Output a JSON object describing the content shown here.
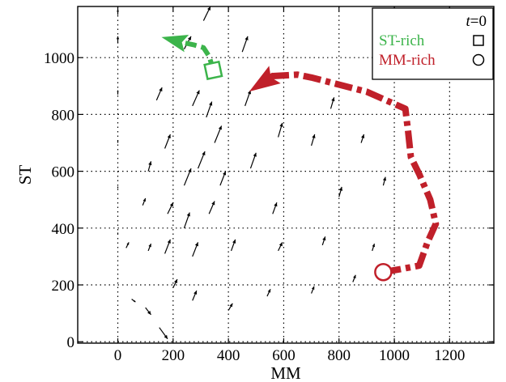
{
  "chart_data": {
    "type": "line",
    "title": "",
    "xlabel": "MM",
    "ylabel": "ST",
    "xlim": [
      -145,
      1360
    ],
    "ylim": [
      -5,
      1180
    ],
    "xticks": [
      0,
      200,
      400,
      600,
      800,
      1000,
      1200
    ],
    "yticks": [
      0,
      200,
      400,
      600,
      800,
      1000
    ],
    "grid": true,
    "legend": {
      "position": "top-right",
      "header": "t=0",
      "header_var": "t",
      "header_value": "=0",
      "entries": [
        {
          "label": "ST-rich",
          "color": "#3cb44b",
          "marker": "square"
        },
        {
          "label": "MM-rich",
          "color": "#c0202a",
          "marker": "circle"
        }
      ]
    },
    "series": [
      {
        "name": "ST-rich",
        "color": "#3cb44b",
        "start_marker": "square",
        "x": [
          345,
          338,
          330,
          310,
          275,
          240,
          175
        ],
        "y": [
          955,
          980,
          1005,
          1035,
          1045,
          1052,
          1068
        ]
      },
      {
        "name": "MM-rich",
        "color": "#c0202a",
        "start_marker": "circle",
        "x": [
          960,
          1020,
          1090,
          1120,
          1150,
          1130,
          1090,
          1060,
          1050,
          1040,
          900,
          780,
          700,
          650,
          560,
          490
        ],
        "y": [
          245,
          255,
          268,
          350,
          415,
          500,
          590,
          650,
          740,
          820,
          880,
          910,
          930,
          940,
          935,
          890
        ]
      }
    ],
    "vector_field": [
      {
        "x": 0,
        "y": 1050,
        "dx": 0,
        "dy": 25
      },
      {
        "x": 0,
        "y": 870,
        "dx": 0,
        "dy": 15
      },
      {
        "x": 0,
        "y": 700,
        "dx": 0,
        "dy": 10
      },
      {
        "x": 0,
        "y": 540,
        "dx": 0,
        "dy": 6
      },
      {
        "x": 0,
        "y": 380,
        "dx": 0,
        "dy": 4
      },
      {
        "x": 0,
        "y": 220,
        "dx": 0,
        "dy": 3
      },
      {
        "x": 0,
        "y": 1150,
        "dx": 0,
        "dy": 20
      },
      {
        "x": 30,
        "y": 330,
        "dx": 10,
        "dy": 20
      },
      {
        "x": 50,
        "y": 150,
        "dx": 14,
        "dy": -10
      },
      {
        "x": 90,
        "y": 480,
        "dx": 10,
        "dy": 25
      },
      {
        "x": 100,
        "y": 120,
        "dx": 20,
        "dy": -25
      },
      {
        "x": 110,
        "y": 320,
        "dx": 10,
        "dy": 25
      },
      {
        "x": 110,
        "y": 600,
        "dx": 10,
        "dy": 35
      },
      {
        "x": 140,
        "y": 850,
        "dx": 20,
        "dy": 45
      },
      {
        "x": 150,
        "y": 50,
        "dx": 30,
        "dy": -40
      },
      {
        "x": 170,
        "y": 680,
        "dx": 20,
        "dy": 50
      },
      {
        "x": 170,
        "y": 310,
        "dx": 20,
        "dy": 50
      },
      {
        "x": 180,
        "y": 450,
        "dx": 20,
        "dy": 40
      },
      {
        "x": 200,
        "y": 190,
        "dx": 15,
        "dy": 30
      },
      {
        "x": 240,
        "y": 1030,
        "dx": 25,
        "dy": 45
      },
      {
        "x": 240,
        "y": 550,
        "dx": 25,
        "dy": 60
      },
      {
        "x": 240,
        "y": 400,
        "dx": 20,
        "dy": 55
      },
      {
        "x": 270,
        "y": 830,
        "dx": 25,
        "dy": 55
      },
      {
        "x": 270,
        "y": 300,
        "dx": 20,
        "dy": 50
      },
      {
        "x": 270,
        "y": 145,
        "dx": 15,
        "dy": 35
      },
      {
        "x": 290,
        "y": 610,
        "dx": 25,
        "dy": 60
      },
      {
        "x": 310,
        "y": 1130,
        "dx": 25,
        "dy": 50
      },
      {
        "x": 320,
        "y": 790,
        "dx": 20,
        "dy": 55
      },
      {
        "x": 330,
        "y": 450,
        "dx": 20,
        "dy": 45
      },
      {
        "x": 350,
        "y": 700,
        "dx": 25,
        "dy": 60
      },
      {
        "x": 370,
        "y": 550,
        "dx": 20,
        "dy": 50
      },
      {
        "x": 400,
        "y": 110,
        "dx": 15,
        "dy": 25
      },
      {
        "x": 410,
        "y": 320,
        "dx": 15,
        "dy": 40
      },
      {
        "x": 450,
        "y": 1020,
        "dx": 20,
        "dy": 55
      },
      {
        "x": 460,
        "y": 830,
        "dx": 20,
        "dy": 55
      },
      {
        "x": 480,
        "y": 610,
        "dx": 20,
        "dy": 55
      },
      {
        "x": 540,
        "y": 160,
        "dx": 12,
        "dy": 25
      },
      {
        "x": 560,
        "y": 450,
        "dx": 15,
        "dy": 40
      },
      {
        "x": 580,
        "y": 720,
        "dx": 15,
        "dy": 50
      },
      {
        "x": 580,
        "y": 320,
        "dx": 15,
        "dy": 30
      },
      {
        "x": 700,
        "y": 170,
        "dx": 10,
        "dy": 25
      },
      {
        "x": 700,
        "y": 690,
        "dx": 12,
        "dy": 40
      },
      {
        "x": 740,
        "y": 340,
        "dx": 10,
        "dy": 30
      },
      {
        "x": 770,
        "y": 820,
        "dx": 12,
        "dy": 40
      },
      {
        "x": 800,
        "y": 510,
        "dx": 10,
        "dy": 35
      },
      {
        "x": 850,
        "y": 210,
        "dx": 10,
        "dy": 25
      },
      {
        "x": 880,
        "y": 700,
        "dx": 10,
        "dy": 30
      },
      {
        "x": 920,
        "y": 320,
        "dx": 8,
        "dy": 25
      },
      {
        "x": 960,
        "y": 550,
        "dx": 8,
        "dy": 30
      }
    ]
  }
}
